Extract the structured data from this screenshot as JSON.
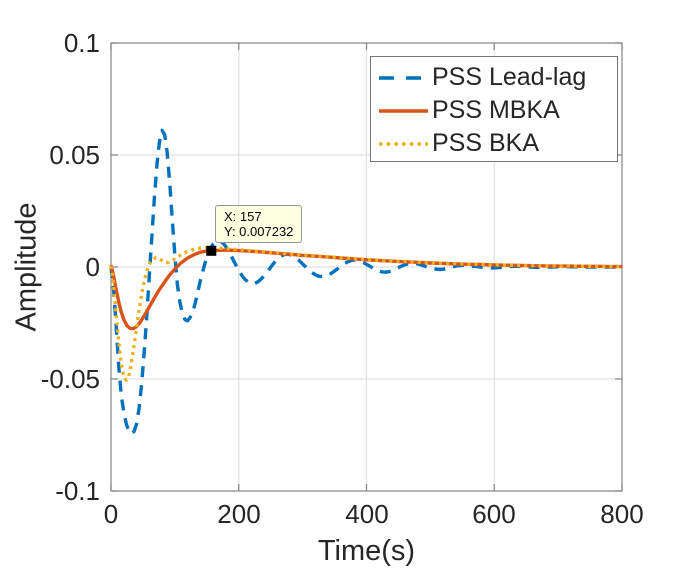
{
  "chart_data": {
    "type": "line",
    "title": "",
    "xlabel": "Time(s)",
    "ylabel": "Amplitude",
    "xlim": [
      0,
      800
    ],
    "ylim": [
      -0.1,
      0.1
    ],
    "x_ticks": [
      0,
      200,
      400,
      600,
      800
    ],
    "x_tick_labels": [
      "0",
      "200",
      "400",
      "600",
      "800"
    ],
    "y_ticks": [
      0.1,
      0.05,
      0,
      -0.05,
      -0.1
    ],
    "y_tick_labels": [
      "0.1",
      "0.05",
      "0",
      "-0.05",
      "-0.1"
    ],
    "grid": true,
    "legend_position": "top-right",
    "axis_colors": {
      "box": "#8c8c8c",
      "grid": "#e0e0e0",
      "text": "#262626"
    },
    "datatip": {
      "x": 157,
      "y": 0.007232,
      "label_x": "X: 157",
      "label_y": "Y: 0.007232",
      "bg_color": "#ffffe1",
      "marker_color": "#000000"
    },
    "series": [
      {
        "name": "PSS Lead-lag",
        "color": "#0072BD",
        "line_style": "dashed",
        "points": [
          [
            0,
            0
          ],
          [
            4,
            -0.01
          ],
          [
            8,
            -0.026
          ],
          [
            12,
            -0.044
          ],
          [
            16,
            -0.057
          ],
          [
            20,
            -0.065
          ],
          [
            24,
            -0.07
          ],
          [
            28,
            -0.0735
          ],
          [
            32,
            -0.0745
          ],
          [
            36,
            -0.0735
          ],
          [
            40,
            -0.07
          ],
          [
            44,
            -0.063
          ],
          [
            48,
            -0.052
          ],
          [
            52,
            -0.038
          ],
          [
            56,
            -0.022
          ],
          [
            60,
            -0.004
          ],
          [
            64,
            0.014
          ],
          [
            68,
            0.031
          ],
          [
            72,
            0.046
          ],
          [
            76,
            0.056
          ],
          [
            80,
            0.061
          ],
          [
            84,
            0.059
          ],
          [
            88,
            0.051
          ],
          [
            92,
            0.037
          ],
          [
            96,
            0.021
          ],
          [
            100,
            0.005
          ],
          [
            104,
            -0.008
          ],
          [
            108,
            -0.016
          ],
          [
            112,
            -0.021
          ],
          [
            116,
            -0.0235
          ],
          [
            120,
            -0.024
          ],
          [
            124,
            -0.0225
          ],
          [
            128,
            -0.02
          ],
          [
            132,
            -0.016
          ],
          [
            136,
            -0.011
          ],
          [
            140,
            -0.006
          ],
          [
            144,
            -0.0015
          ],
          [
            148,
            0.0025
          ],
          [
            152,
            0.006
          ],
          [
            156,
            0.0085
          ],
          [
            160,
            0.0103
          ],
          [
            164,
            0.0113
          ],
          [
            168,
            0.0117
          ],
          [
            172,
            0.0114
          ],
          [
            176,
            0.0105
          ],
          [
            180,
            0.009
          ],
          [
            184,
            0.007
          ],
          [
            188,
            0.005
          ],
          [
            192,
            0.0028
          ],
          [
            196,
            0.0006
          ],
          [
            200,
            -0.0015
          ],
          [
            205,
            -0.0038
          ],
          [
            210,
            -0.0056
          ],
          [
            215,
            -0.0068
          ],
          [
            220,
            -0.0074
          ],
          [
            225,
            -0.0073
          ],
          [
            230,
            -0.0066
          ],
          [
            235,
            -0.0054
          ],
          [
            240,
            -0.0038
          ],
          [
            245,
            -0.002
          ],
          [
            250,
            -0.0001
          ],
          [
            255,
            0.0018
          ],
          [
            260,
            0.0034
          ],
          [
            265,
            0.0046
          ],
          [
            270,
            0.0054
          ],
          [
            275,
            0.0057
          ],
          [
            280,
            0.0056
          ],
          [
            285,
            0.005
          ],
          [
            290,
            0.004
          ],
          [
            295,
            0.0028
          ],
          [
            300,
            0.0014
          ],
          [
            305,
            0
          ],
          [
            310,
            -0.0013
          ],
          [
            315,
            -0.0025
          ],
          [
            320,
            -0.0035
          ],
          [
            325,
            -0.0041
          ],
          [
            330,
            -0.0043
          ],
          [
            335,
            -0.0041
          ],
          [
            340,
            -0.0036
          ],
          [
            345,
            -0.0028
          ],
          [
            350,
            -0.0018
          ],
          [
            355,
            -0.0007
          ],
          [
            360,
            0.0004
          ],
          [
            365,
            0.0014
          ],
          [
            370,
            0.0022
          ],
          [
            375,
            0.0028
          ],
          [
            380,
            0.0031
          ],
          [
            385,
            0.003
          ],
          [
            390,
            0.0026
          ],
          [
            395,
            0.002
          ],
          [
            400,
            0.0012
          ],
          [
            405,
            0.0004
          ],
          [
            410,
            -0.0005
          ],
          [
            415,
            -0.0013
          ],
          [
            420,
            -0.0019
          ],
          [
            425,
            -0.0022
          ],
          [
            430,
            -0.0023
          ],
          [
            435,
            -0.0021
          ],
          [
            440,
            -0.0016
          ],
          [
            445,
            -0.001
          ],
          [
            450,
            -0.0003
          ],
          [
            455,
            0.0004
          ],
          [
            460,
            0.001
          ],
          [
            465,
            0.0014
          ],
          [
            470,
            0.0016
          ],
          [
            475,
            0.0016
          ],
          [
            480,
            0.0014
          ],
          [
            485,
            0.001
          ],
          [
            490,
            0.0005
          ],
          [
            495,
            0
          ],
          [
            500,
            -0.0005
          ],
          [
            505,
            -0.0008
          ],
          [
            510,
            -0.001
          ],
          [
            515,
            -0.0011
          ],
          [
            520,
            -0.001
          ],
          [
            525,
            -0.0007
          ],
          [
            530,
            -0.0003
          ],
          [
            535,
            0.0001
          ],
          [
            540,
            0.0004
          ],
          [
            545,
            0.0006
          ],
          [
            550,
            0.0007
          ],
          [
            560,
            0.0006
          ],
          [
            570,
            0.0003
          ],
          [
            580,
            -0.0001
          ],
          [
            590,
            -0.0004
          ],
          [
            600,
            -0.0004
          ],
          [
            610,
            -0.0002
          ],
          [
            620,
            0.0001
          ],
          [
            630,
            0.0003
          ],
          [
            640,
            0.0003
          ],
          [
            650,
            0.0001
          ],
          [
            665,
            -0.0002
          ],
          [
            680,
            -0.0001
          ],
          [
            700,
            0.0001
          ],
          [
            720,
            0.0001
          ],
          [
            740,
            0
          ],
          [
            760,
            0
          ],
          [
            780,
            0
          ],
          [
            800,
            0
          ]
        ]
      },
      {
        "name": "PSS MBKA",
        "color": "#D95319",
        "line_style": "solid",
        "points": [
          [
            0,
            0.0008
          ],
          [
            4,
            -0.004
          ],
          [
            8,
            -0.01
          ],
          [
            12,
            -0.0155
          ],
          [
            16,
            -0.02
          ],
          [
            20,
            -0.0235
          ],
          [
            25,
            -0.0262
          ],
          [
            30,
            -0.0274
          ],
          [
            35,
            -0.0275
          ],
          [
            40,
            -0.0266
          ],
          [
            46,
            -0.0245
          ],
          [
            52,
            -0.0218
          ],
          [
            60,
            -0.0178
          ],
          [
            68,
            -0.0138
          ],
          [
            76,
            -0.01
          ],
          [
            84,
            -0.0066
          ],
          [
            92,
            -0.0035
          ],
          [
            100,
            -0.0008
          ],
          [
            110,
            0.0019
          ],
          [
            120,
            0.004
          ],
          [
            130,
            0.0055
          ],
          [
            140,
            0.0066
          ],
          [
            150,
            0.0071
          ],
          [
            157,
            0.007232
          ],
          [
            165,
            0.0074
          ],
          [
            175,
            0.0075
          ],
          [
            185,
            0.0075
          ],
          [
            200,
            0.0073
          ],
          [
            220,
            0.007
          ],
          [
            240,
            0.0066
          ],
          [
            260,
            0.0061
          ],
          [
            280,
            0.0057
          ],
          [
            300,
            0.0052
          ],
          [
            320,
            0.0048
          ],
          [
            340,
            0.0044
          ],
          [
            360,
            0.004
          ],
          [
            380,
            0.0036
          ],
          [
            400,
            0.0032
          ],
          [
            420,
            0.0029
          ],
          [
            440,
            0.0026
          ],
          [
            460,
            0.0023
          ],
          [
            480,
            0.0021
          ],
          [
            500,
            0.0018
          ],
          [
            520,
            0.0016
          ],
          [
            540,
            0.0014
          ],
          [
            560,
            0.0012
          ],
          [
            580,
            0.0011
          ],
          [
            600,
            0.0009
          ],
          [
            620,
            0.0008
          ],
          [
            640,
            0.0007
          ],
          [
            660,
            0.0006
          ],
          [
            680,
            0.0005
          ],
          [
            700,
            0.0004
          ],
          [
            720,
            0.0004
          ],
          [
            740,
            0.0003
          ],
          [
            760,
            0.0003
          ],
          [
            780,
            0.0002
          ],
          [
            800,
            0.0002
          ]
        ]
      },
      {
        "name": "PSS BKA",
        "color": "#EDB120",
        "line_style": "dotted",
        "points": [
          [
            0,
            0.0005
          ],
          [
            3,
            -0.005
          ],
          [
            6,
            -0.014
          ],
          [
            9,
            -0.024
          ],
          [
            12,
            -0.033
          ],
          [
            15,
            -0.041
          ],
          [
            18,
            -0.0465
          ],
          [
            21,
            -0.0495
          ],
          [
            24,
            -0.0505
          ],
          [
            27,
            -0.0495
          ],
          [
            30,
            -0.046
          ],
          [
            34,
            -0.039
          ],
          [
            38,
            -0.031
          ],
          [
            42,
            -0.023
          ],
          [
            46,
            -0.0155
          ],
          [
            50,
            -0.009
          ],
          [
            54,
            -0.004
          ],
          [
            58,
            -0.0002
          ],
          [
            62,
            0.0022
          ],
          [
            66,
            0.0036
          ],
          [
            70,
            0.0041
          ],
          [
            74,
            0.0039
          ],
          [
            78,
            0.0032
          ],
          [
            82,
            0.0024
          ],
          [
            86,
            0.0019
          ],
          [
            90,
            0.002
          ],
          [
            95,
            0.0027
          ],
          [
            100,
            0.0037
          ],
          [
            110,
            0.0056
          ],
          [
            120,
            0.007
          ],
          [
            130,
            0.0079
          ],
          [
            140,
            0.0084
          ],
          [
            150,
            0.0086
          ],
          [
            160,
            0.0086
          ],
          [
            170,
            0.0084
          ],
          [
            180,
            0.0082
          ],
          [
            200,
            0.0077
          ],
          [
            220,
            0.0072
          ],
          [
            240,
            0.0068
          ],
          [
            260,
            0.0063
          ],
          [
            280,
            0.0058
          ],
          [
            300,
            0.0054
          ],
          [
            320,
            0.0049
          ],
          [
            340,
            0.0045
          ],
          [
            360,
            0.0041
          ],
          [
            380,
            0.0037
          ],
          [
            400,
            0.0033
          ],
          [
            420,
            0.003
          ],
          [
            440,
            0.0027
          ],
          [
            460,
            0.0024
          ],
          [
            480,
            0.0021
          ],
          [
            500,
            0.0019
          ],
          [
            520,
            0.0017
          ],
          [
            540,
            0.0015
          ],
          [
            560,
            0.0013
          ],
          [
            580,
            0.0011
          ],
          [
            600,
            0.001
          ],
          [
            620,
            0.0008
          ],
          [
            640,
            0.0007
          ],
          [
            660,
            0.0006
          ],
          [
            680,
            0.0005
          ],
          [
            700,
            0.0005
          ],
          [
            720,
            0.0004
          ],
          [
            740,
            0.0003
          ],
          [
            760,
            0.0003
          ],
          [
            780,
            0.0002
          ],
          [
            800,
            0.0002
          ]
        ]
      }
    ]
  }
}
